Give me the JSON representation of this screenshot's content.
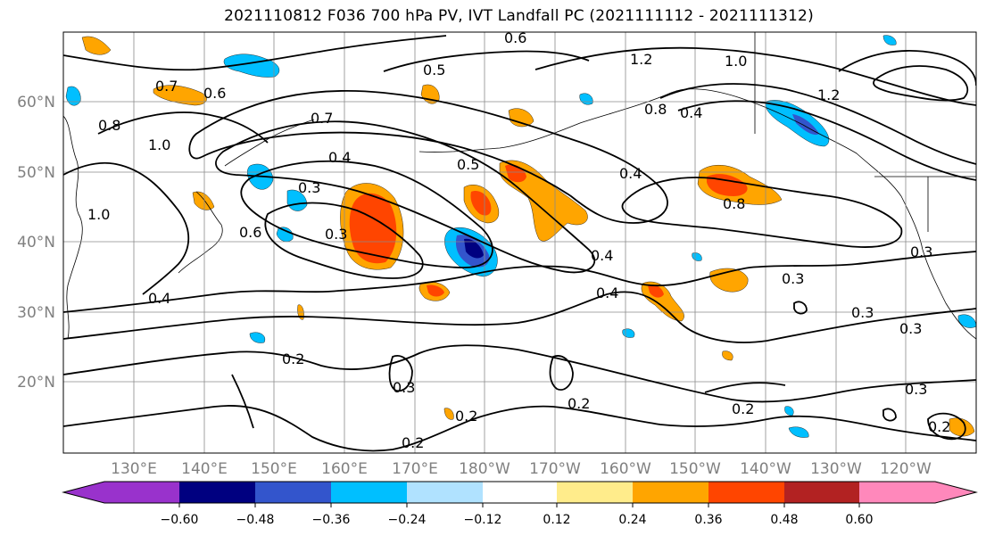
{
  "title": "2021110812 F036 700 hPa PV, IVT Landfall PC (2021111112 - 2021111312)",
  "map": {
    "lat_labels": [
      "60°N",
      "50°N",
      "40°N",
      "30°N",
      "20°N"
    ],
    "lon_labels": [
      "130°E",
      "140°E",
      "150°E",
      "160°E",
      "170°E",
      "180°W",
      "170°W",
      "160°W",
      "150°W",
      "140°W",
      "130°W",
      "120°W"
    ],
    "contour_labels": [
      "0.6",
      "0.5",
      "1.2",
      "1.0",
      "1.2",
      "0.7",
      "0.6",
      "0.8",
      "1.0",
      "0.7",
      "0.4",
      "0.3",
      "0.5",
      "0.4",
      "0.8",
      "0.4",
      "0.6",
      "0.3",
      "1.0",
      "0.4",
      "0.4",
      "0.8",
      "0.4",
      "0.3",
      "0.3",
      "0.3",
      "0.2",
      "0.3",
      "0.2",
      "0.2",
      "0.2",
      "0.2",
      "0.3",
      "0.2",
      "0.3"
    ]
  },
  "colorbar": {
    "colors": [
      "#9932CC",
      "#000080",
      "#3355CC",
      "#00BFFF",
      "#B0E2FF",
      "#FFFFFF",
      "#FFEC8B",
      "#FFA500",
      "#FF4500",
      "#B22222",
      "#FF88BB"
    ],
    "ticks": [
      "−0.60",
      "−0.48",
      "−0.36",
      "−0.24",
      "−0.12",
      "0.12",
      "0.24",
      "0.36",
      "0.48",
      "0.60"
    ]
  }
}
